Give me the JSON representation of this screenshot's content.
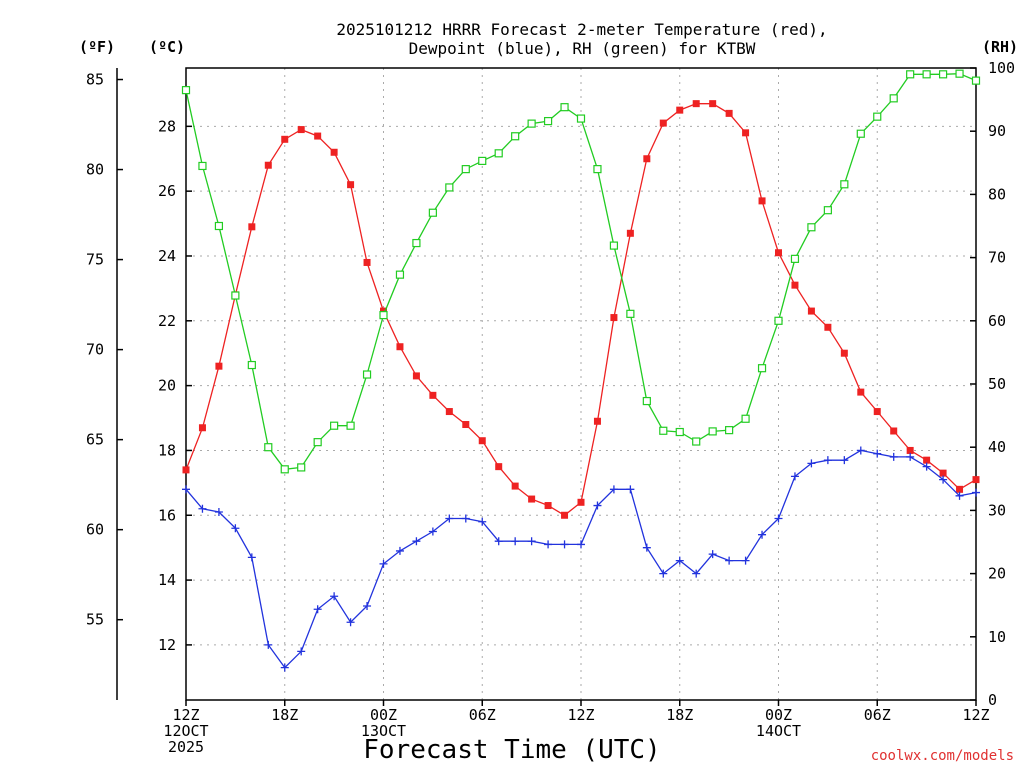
{
  "chart_data": {
    "type": "line",
    "title_line1": "2025101212 HRRR Forecast 2-meter Temperature (red),",
    "title_line2": "Dewpoint (blue), RH (green) for KTBW",
    "xlabel": "Forecast Time (UTC)",
    "units": {
      "fahrenheit": "(ºF)",
      "celsius": "(ºC)",
      "rh": "(RH)"
    },
    "credit": "coolwx.com/models",
    "x_range": [
      0,
      48
    ],
    "x_ticks": [
      {
        "hour": 0,
        "lines": [
          "12Z",
          "12OCT",
          "2025"
        ]
      },
      {
        "hour": 6,
        "lines": [
          "18Z"
        ]
      },
      {
        "hour": 12,
        "lines": [
          "00Z",
          "13OCT"
        ]
      },
      {
        "hour": 18,
        "lines": [
          "06Z"
        ]
      },
      {
        "hour": 24,
        "lines": [
          "12Z"
        ]
      },
      {
        "hour": 30,
        "lines": [
          "18Z"
        ]
      },
      {
        "hour": 36,
        "lines": [
          "00Z",
          "14OCT"
        ]
      },
      {
        "hour": 42,
        "lines": [
          "06Z"
        ]
      },
      {
        "hour": 48,
        "lines": [
          "12Z"
        ]
      }
    ],
    "c_range": [
      10.3,
      29.8
    ],
    "c_ticks": [
      12,
      14,
      16,
      18,
      20,
      22,
      24,
      26,
      28
    ],
    "f_ticks": [
      55,
      60,
      65,
      70,
      75,
      80,
      85
    ],
    "rh_range": [
      0,
      100
    ],
    "rh_ticks": [
      0,
      10,
      20,
      30,
      40,
      50,
      60,
      70,
      80,
      90,
      100
    ],
    "series": [
      {
        "name": "2-meter Temperature (°C)",
        "color": "#ee2222",
        "marker": "filled-square",
        "axis": "celsius",
        "values": [
          17.4,
          18.7,
          20.6,
          22.8,
          24.9,
          26.8,
          27.6,
          27.9,
          27.7,
          27.2,
          26.2,
          23.8,
          22.3,
          21.2,
          20.3,
          19.7,
          19.2,
          18.8,
          18.3,
          17.5,
          16.9,
          16.5,
          16.3,
          16.0,
          16.4,
          18.9,
          22.1,
          24.7,
          27.0,
          28.1,
          28.5,
          28.7,
          28.7,
          28.4,
          27.8,
          25.7,
          24.1,
          23.1,
          22.3,
          21.8,
          21.0,
          19.8,
          19.2,
          18.6,
          18.0,
          17.7,
          17.3,
          16.8,
          17.1
        ]
      },
      {
        "name": "Dewpoint (°C)",
        "color": "#2233dd",
        "marker": "plus",
        "axis": "celsius",
        "values": [
          16.8,
          16.2,
          16.1,
          15.6,
          14.7,
          12.0,
          11.3,
          11.8,
          13.1,
          13.5,
          12.7,
          13.2,
          14.5,
          14.9,
          15.2,
          15.5,
          15.9,
          15.9,
          15.8,
          15.2,
          15.2,
          15.2,
          15.1,
          15.1,
          15.1,
          16.3,
          16.8,
          16.8,
          15.0,
          14.2,
          14.6,
          14.2,
          14.8,
          14.6,
          14.6,
          15.4,
          15.9,
          17.2,
          17.6,
          17.7,
          17.7,
          18.0,
          17.9,
          17.8,
          17.8,
          17.5,
          17.1,
          16.6,
          16.7
        ]
      },
      {
        "name": "RH (%)",
        "color": "#22cc22",
        "marker": "open-square",
        "axis": "rh",
        "values": [
          96.5,
          84.5,
          75.0,
          64.0,
          53.0,
          40.0,
          36.5,
          36.8,
          40.8,
          43.4,
          43.4,
          51.5,
          60.9,
          67.3,
          72.3,
          77.1,
          81.1,
          84.0,
          85.3,
          86.5,
          89.2,
          91.2,
          91.6,
          93.8,
          92.0,
          84.0,
          71.9,
          61.1,
          47.3,
          42.6,
          42.4,
          40.9,
          42.5,
          42.7,
          44.5,
          52.5,
          60.0,
          69.8,
          74.8,
          77.5,
          81.6,
          89.6,
          92.3,
          95.2,
          99.0,
          99.0,
          99.0,
          99.1,
          98.0
        ]
      }
    ]
  }
}
